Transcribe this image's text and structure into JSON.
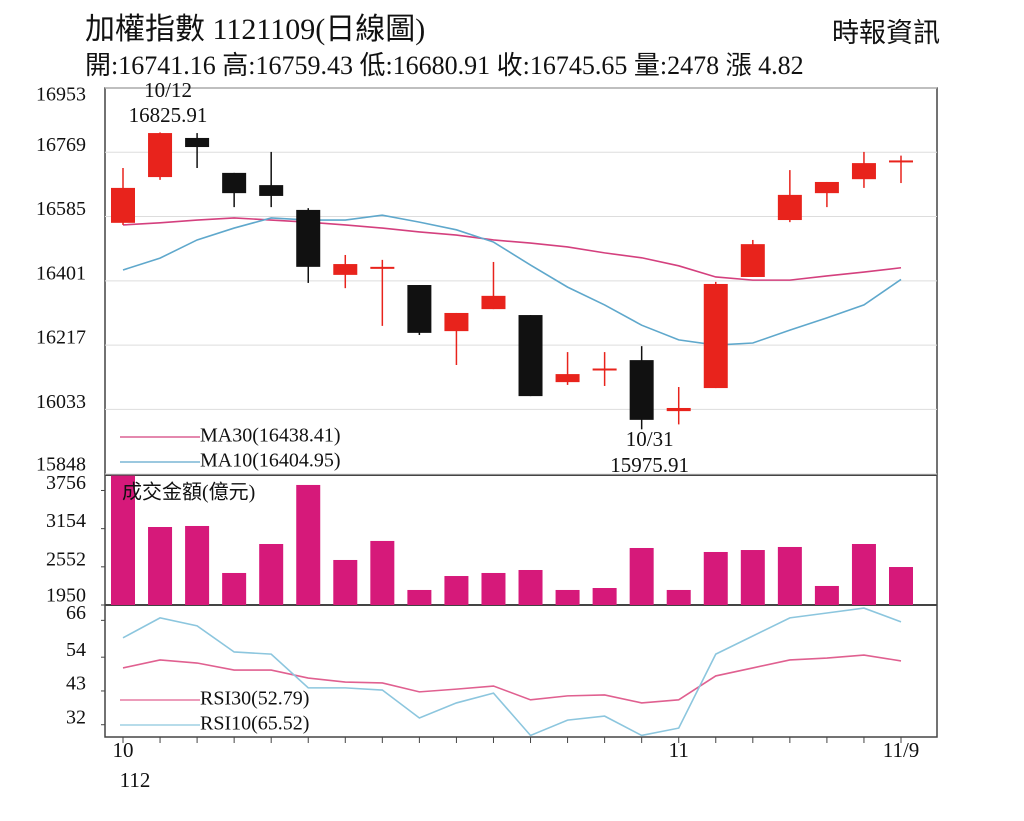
{
  "chart_data": [
    {
      "type": "candlestick",
      "title": "加權指數 1121109(日線圖)",
      "source": "時報資訊",
      "subtitle": "開:16741.16 高:16759.43 低:16680.91 收:16745.65 量:2478 漲 4.82",
      "categories": [
        "10",
        null,
        null,
        null,
        null,
        null,
        null,
        null,
        null,
        null,
        null,
        null,
        null,
        null,
        null,
        "11",
        null,
        null,
        null,
        null,
        null,
        "11/9"
      ],
      "year_label": "112",
      "open": [
        16567,
        16698,
        16810,
        16710,
        16675,
        16604,
        16418,
        16438,
        16389,
        16257,
        16320,
        16303,
        16111,
        16145,
        16174,
        16028,
        16094,
        16412,
        16575,
        16652,
        16692,
        16741.16
      ],
      "high": [
        16724,
        16825.91,
        16824,
        16710,
        16770,
        16609,
        16475,
        16461,
        16389,
        16309,
        16455,
        16303,
        16197,
        16197,
        16214,
        16097,
        16398,
        16518,
        16718,
        16684,
        16770,
        16759.43
      ],
      "low": [
        16561,
        16690,
        16724,
        16612,
        16612,
        16395,
        16380,
        16272,
        16246,
        16160,
        16320,
        16071,
        16103,
        16100,
        15975.91,
        15990,
        16094,
        16412,
        16569,
        16612,
        16667,
        16680.91
      ],
      "close": [
        16667,
        16824,
        16784,
        16652,
        16644,
        16441,
        16449,
        16441,
        16252,
        16309,
        16358,
        16071,
        16134,
        16150,
        16003,
        16037,
        16392,
        16506,
        16647,
        16684,
        16738,
        16745.65
      ],
      "up_color": "#e8231c",
      "down_color": "#111111",
      "series": [
        {
          "name": "MA30(16438.41)",
          "color": "#d4407e",
          "values": [
            16561,
            16567,
            16575,
            16581,
            16575,
            16569,
            16561,
            16552,
            16541,
            16532,
            16518,
            16509,
            16498,
            16481,
            16467,
            16444,
            16412,
            16403,
            16403,
            16415,
            16426,
            16438.41
          ]
        },
        {
          "name": "MA10(16404.95)",
          "color": "#5fa8cc",
          "values": [
            16432,
            16466,
            16518,
            16552,
            16581,
            16575,
            16575,
            16589,
            16569,
            16547,
            16512,
            16446,
            16383,
            16332,
            16274,
            16232,
            16217,
            16223,
            16260,
            16295,
            16332,
            16404.95
          ]
        }
      ],
      "annotations": [
        {
          "text": "10/12",
          "value": 16825.91
        },
        {
          "text": "10/31",
          "value": 15975.91
        }
      ],
      "ylim": [
        15848,
        16953
      ],
      "yticks": [
        15848,
        16033,
        16217,
        16401,
        16585,
        16769,
        16953
      ],
      "grid": true
    },
    {
      "type": "bar",
      "title": "成交金額(億元)",
      "values": [
        3990,
        3180,
        3196,
        2455,
        2912,
        3843,
        2660,
        2960,
        2187,
        2407,
        2455,
        2502,
        2187,
        2218,
        2849,
        2187,
        2786,
        2817,
        2865,
        2250,
        2912,
        2549
      ],
      "color": "#d6197a",
      "ylim": [
        1950,
        4000
      ],
      "yticks": [
        1950,
        2552,
        3154,
        3756
      ],
      "grid": false
    },
    {
      "type": "line",
      "series": [
        {
          "name": "RSI30(52.79)",
          "color": "#e06090",
          "values": [
            50.5,
            53.1,
            52.1,
            49.8,
            49.8,
            47.2,
            45.9,
            45.6,
            42.7,
            43.6,
            44.6,
            40.1,
            41.4,
            41.7,
            39.1,
            40.1,
            47.9,
            50.5,
            53.1,
            53.7,
            54.7,
            52.79
          ]
        },
        {
          "name": "RSI10(65.52)",
          "color": "#8cc6de",
          "values": [
            60.3,
            66.8,
            64.2,
            55.7,
            55.0,
            44.0,
            44.0,
            43.3,
            34.2,
            39.1,
            42.3,
            28.5,
            33.5,
            34.8,
            28.5,
            30.9,
            55.0,
            60.9,
            66.8,
            68.4,
            70.0,
            65.52
          ]
        }
      ],
      "ylim": [
        28,
        71
      ],
      "yticks": [
        32,
        43,
        54,
        66
      ],
      "grid": false
    }
  ]
}
